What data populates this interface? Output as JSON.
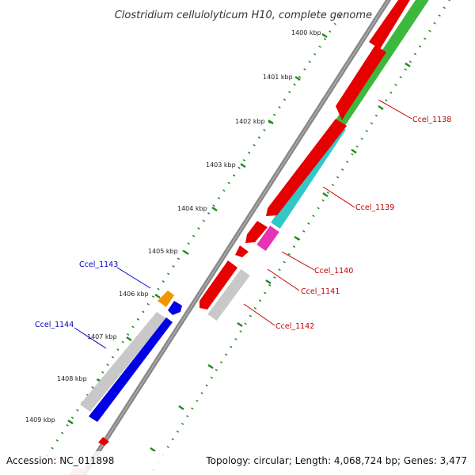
{
  "title": "Clostridium cellulolyticum H10, complete genome",
  "accession": "Accession: NC_011898",
  "summary": "Topology: circular; Length: 4,068,724 bp; Genes: 3,477",
  "ticks": [
    "1400 kbp",
    "1401 kbp",
    "1402 kbp",
    "1403 kbp",
    "1404 kbp",
    "1405 kbp",
    "1406 kbp",
    "1407 kbp",
    "1408 kbp",
    "1409 kbp"
  ],
  "genes": [
    {
      "id": "Ccel_1138",
      "strand": "forward",
      "color": "#c00000",
      "fill": "#e60000",
      "cog_color": "#3cb83c"
    },
    {
      "id": "Ccel_1139",
      "strand": "forward",
      "color": "#c00000",
      "fill": "#e60000",
      "cog_color": "#33c8c8"
    },
    {
      "id": "Ccel_1140",
      "strand": "forward",
      "color": "#c00000",
      "fill": "#e60000",
      "cog_color": "#e632b4"
    },
    {
      "id": "Ccel_1141",
      "strand": "forward",
      "color": "#c00000",
      "fill": "#e60000",
      "cog_color": null
    },
    {
      "id": "Ccel_1142",
      "strand": "forward",
      "color": "#c00000",
      "fill": "#e60000",
      "cog_color": "#c8c8c8"
    },
    {
      "id": "Ccel_1143",
      "strand": "reverse",
      "color": "#0000c0",
      "fill": "#0000e6",
      "cog_color": "#f09600"
    },
    {
      "id": "Ccel_1144",
      "strand": "reverse",
      "color": "#0000c0",
      "fill": "#0000e6",
      "cog_color": "#c8c8c8"
    }
  ],
  "colors": {
    "backbone": "#888888",
    "tick": "#1e8a1e",
    "forward_label": "#c00000",
    "reverse_label": "#0000c0"
  }
}
